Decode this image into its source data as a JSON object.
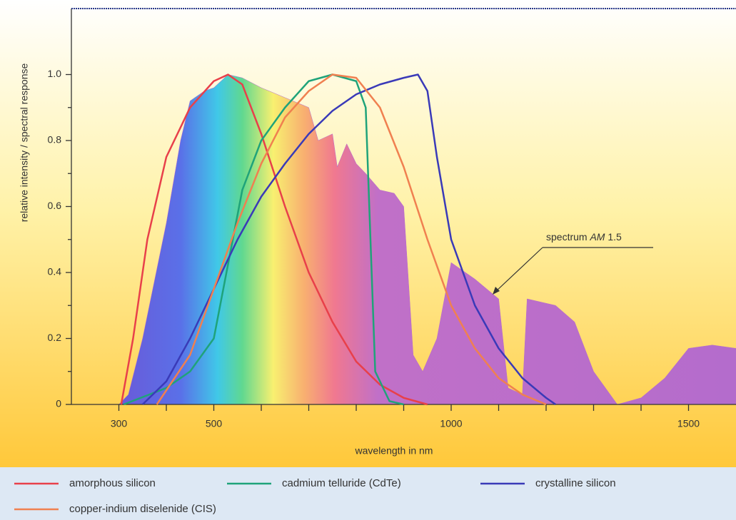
{
  "chart_data": {
    "type": "line",
    "y_label": "relative intensity / spectral response",
    "x_label": "wavelength in nm",
    "xlim": [
      200,
      1600
    ],
    "ylim": [
      0,
      1.2
    ],
    "xticks": [
      300,
      500,
      1000,
      1500
    ],
    "xminorticks": [
      400,
      600,
      700,
      800,
      900,
      1100,
      1200,
      1300,
      1400
    ],
    "yticks": [
      0,
      0.2,
      0.4,
      0.6,
      0.8,
      {
        "value": 1,
        "label": "1.0"
      }
    ],
    "yminorticks": [
      0.1,
      0.3,
      0.5,
      0.7,
      0.9
    ],
    "spectrum": {
      "color": "#b46ccc",
      "x": [
        300,
        320,
        350,
        400,
        430,
        450,
        480,
        500,
        530,
        560,
        600,
        650,
        700,
        720,
        750,
        760,
        780,
        800,
        820,
        850,
        880,
        900,
        920,
        940,
        970,
        1000,
        1050,
        1100,
        1120,
        1150,
        1160,
        1220,
        1260,
        1300,
        1350,
        1400,
        1450,
        1500,
        1550,
        1600
      ],
      "values": [
        0,
        0.03,
        0.2,
        0.55,
        0.8,
        0.92,
        0.95,
        0.96,
        1.0,
        0.99,
        0.96,
        0.93,
        0.9,
        0.8,
        0.82,
        0.72,
        0.79,
        0.73,
        0.7,
        0.65,
        0.64,
        0.6,
        0.15,
        0.1,
        0.2,
        0.43,
        0.38,
        0.32,
        0.05,
        0.03,
        0.32,
        0.3,
        0.25,
        0.1,
        0.0,
        0.02,
        0.08,
        0.17,
        0.18,
        0.17
      ]
    },
    "annotation": [
      "spectrum",
      "AM",
      "1.5"
    ],
    "series": [
      {
        "name": "amorphous silicon",
        "color": "#e8404a",
        "x": [
          305,
          330,
          360,
          400,
          450,
          500,
          530,
          560,
          600,
          650,
          700,
          750,
          800,
          850,
          900,
          950
        ],
        "values": [
          0,
          0.2,
          0.5,
          0.75,
          0.9,
          0.98,
          1.0,
          0.97,
          0.82,
          0.6,
          0.4,
          0.25,
          0.13,
          0.06,
          0.02,
          0
        ]
      },
      {
        "name": "cadmium telluride (CdTe)",
        "color": "#1fa37a",
        "x": [
          310,
          400,
          450,
          500,
          540,
          560,
          600,
          650,
          700,
          750,
          800,
          820,
          830,
          840,
          870,
          900
        ],
        "values": [
          0,
          0.05,
          0.1,
          0.2,
          0.5,
          0.65,
          0.8,
          0.9,
          0.98,
          1.0,
          0.98,
          0.9,
          0.5,
          0.1,
          0.01,
          0
        ]
      },
      {
        "name": "crystalline silicon",
        "color": "#3a3ab8",
        "x": [
          350,
          400,
          450,
          500,
          550,
          600,
          650,
          700,
          750,
          800,
          850,
          900,
          930,
          950,
          970,
          1000,
          1050,
          1100,
          1150,
          1200,
          1220
        ],
        "values": [
          0,
          0.07,
          0.2,
          0.35,
          0.5,
          0.63,
          0.73,
          0.82,
          0.89,
          0.94,
          0.97,
          0.99,
          1.0,
          0.95,
          0.75,
          0.5,
          0.3,
          0.17,
          0.08,
          0.02,
          0
        ]
      },
      {
        "name": "copper-indium diselenide (CIS)",
        "color": "#f08050",
        "x": [
          380,
          450,
          500,
          550,
          600,
          650,
          700,
          750,
          800,
          850,
          900,
          950,
          1000,
          1050,
          1100,
          1150,
          1200
        ],
        "values": [
          0,
          0.15,
          0.35,
          0.55,
          0.73,
          0.87,
          0.95,
          1.0,
          0.99,
          0.9,
          0.72,
          0.5,
          0.3,
          0.17,
          0.08,
          0.03,
          0
        ]
      }
    ]
  }
}
